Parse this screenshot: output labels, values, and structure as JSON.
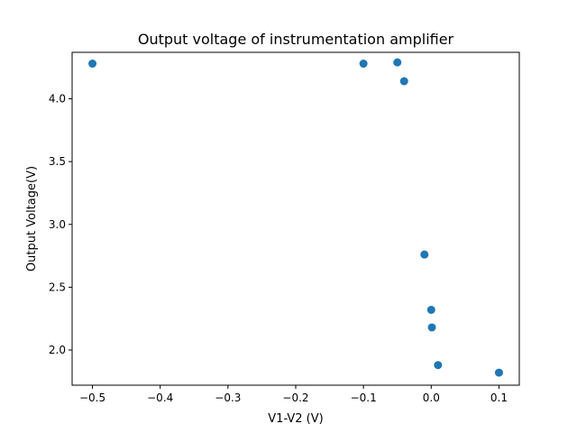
{
  "chart_data": {
    "type": "scatter",
    "title": "Output voltage of instrumentation amplifier",
    "xlabel": "V1-V2 (V)",
    "ylabel": "Output Voltage(V)",
    "xlim": [
      -0.53,
      0.13
    ],
    "ylim": [
      1.72,
      4.37
    ],
    "xticks": [
      -0.5,
      -0.4,
      -0.3,
      -0.2,
      -0.1,
      0.0,
      0.1
    ],
    "xtick_labels": [
      "−0.5",
      "−0.4",
      "−0.3",
      "−0.2",
      "−0.1",
      "0.0",
      "0.1"
    ],
    "yticks": [
      2.0,
      2.5,
      3.0,
      3.5,
      4.0
    ],
    "ytick_labels": [
      "2.0",
      "2.5",
      "3.0",
      "3.5",
      "4.0"
    ],
    "grid": false,
    "marker_color": "#1f77b4",
    "points": [
      {
        "x": -0.5,
        "y": 4.28
      },
      {
        "x": -0.1,
        "y": 4.28
      },
      {
        "x": -0.05,
        "y": 4.29
      },
      {
        "x": -0.04,
        "y": 4.14
      },
      {
        "x": -0.01,
        "y": 2.76
      },
      {
        "x": 0.0,
        "y": 2.32
      },
      {
        "x": 0.001,
        "y": 2.18
      },
      {
        "x": 0.01,
        "y": 1.88
      },
      {
        "x": 0.1,
        "y": 1.82
      }
    ]
  }
}
